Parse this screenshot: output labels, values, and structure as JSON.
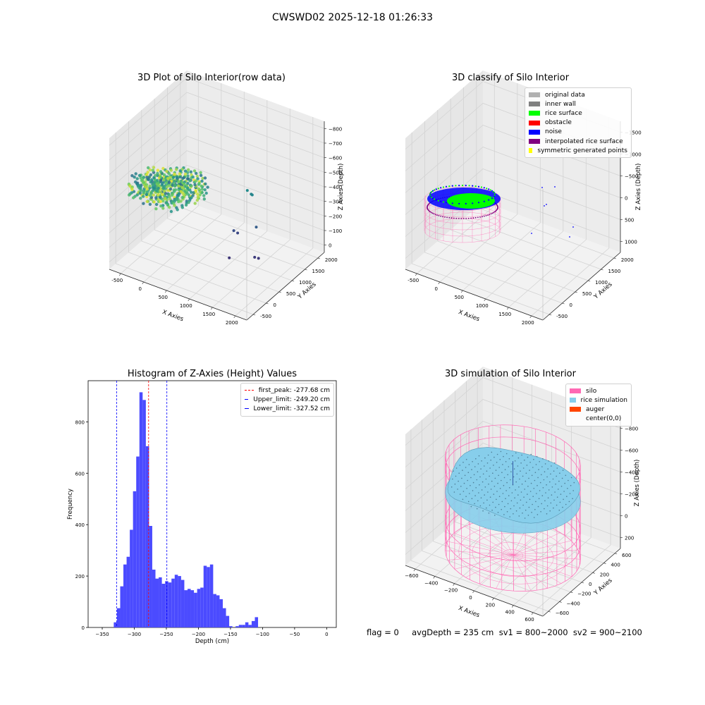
{
  "figure": {
    "suptitle": "CWSWD02 2025-12-18 01:26:33",
    "footer": "flag = 0     avgDepth = 235 cm  sv1 = 800~2000  sv2 = 900~2100"
  },
  "colors": {
    "histogram_bar": "#4b4bff",
    "silo": "#ff69b4",
    "rice_simulation": "#87ceeb",
    "auger": "#ff4500",
    "rice_surface": "#00ff00",
    "noise": "#0000ff",
    "interpolated": "#800080",
    "symmetric": "#ffff00",
    "original": "#b0b0b0",
    "inner_wall": "#808080",
    "first_peak_line": "#ff0000",
    "limit_line": "#0000ff"
  },
  "chart_data": [
    {
      "id": "raw",
      "type": "scatter",
      "title": "3D Plot of Silo Interior(row data)",
      "xlabel": "X Axies",
      "ylabel": "Y Axies",
      "zlabel": "Z Axies (Depth)",
      "x_ticks": [
        "-500",
        "0",
        "500",
        "1000",
        "1500",
        "2000"
      ],
      "y_ticks": [
        "-500",
        "0",
        "500",
        "1000",
        "1500",
        "2000"
      ],
      "z_ticks": [
        "0",
        "−100",
        "−200",
        "−300",
        "−400",
        "−500",
        "−600",
        "−700",
        "−800"
      ],
      "xlim": [
        -700,
        2100
      ],
      "ylim": [
        -600,
        2100
      ],
      "zlim": [
        -900,
        50
      ],
      "colormap": "viridis",
      "outliers": [
        {
          "x": 1000,
          "y": 1300,
          "z": -450
        },
        {
          "x": 1050,
          "y": 1350,
          "z": -480
        },
        {
          "x": 1100,
          "y": 1300,
          "z": -470
        },
        {
          "x": 900,
          "y": 1000,
          "z": -700
        },
        {
          "x": 950,
          "y": 1050,
          "z": -720
        },
        {
          "x": 1300,
          "y": 1100,
          "z": -640
        },
        {
          "x": 1100,
          "y": 500,
          "z": -780
        },
        {
          "x": 1500,
          "y": 700,
          "z": -760
        },
        {
          "x": 1550,
          "y": 750,
          "z": -770
        }
      ]
    },
    {
      "id": "classify",
      "type": "scatter",
      "title": "3D classify of Silo Interior",
      "xlabel": "X Axies",
      "ylabel": "Y Axies",
      "zlabel": "Z Axies (Depth)",
      "x_ticks": [
        "-500",
        "0",
        "500",
        "1000",
        "1500",
        "2000"
      ],
      "y_ticks": [
        "-500",
        "0",
        "500",
        "1000",
        "1500",
        "2000"
      ],
      "z_ticks": [
        "1000",
        "500",
        "0",
        "−500",
        "−1000",
        "−1500"
      ],
      "xlim": [
        -700,
        2100
      ],
      "ylim": [
        -600,
        2100
      ],
      "zlim": [
        -1700,
        1100
      ],
      "legend": [
        {
          "label": "original data",
          "color": "#b0b0b0"
        },
        {
          "label": "inner wall",
          "color": "#808080"
        },
        {
          "label": "rice surface",
          "color": "#00ff00"
        },
        {
          "label": "obstacle",
          "color": "#ff0000"
        },
        {
          "label": "noise",
          "color": "#0000ff"
        },
        {
          "label": "interpolated rice surface",
          "color": "#800080"
        },
        {
          "label": "symmetric generated points",
          "color": "#ffff00"
        }
      ]
    },
    {
      "id": "hist",
      "type": "bar",
      "title": "Histogram of Z-Axies (Height) Values",
      "xlabel": "Depth (cm)",
      "ylabel": "Frequency",
      "xlim": [
        -372,
        15
      ],
      "ylim": [
        0,
        960
      ],
      "x_ticks": [
        -350,
        -300,
        -250,
        -200,
        -150,
        -100,
        -50,
        0
      ],
      "y_ticks": [
        0,
        200,
        400,
        600,
        800
      ],
      "bin_start": -332,
      "bin_width": 5,
      "frequencies": [
        20,
        75,
        160,
        245,
        275,
        380,
        530,
        665,
        915,
        885,
        705,
        395,
        225,
        190,
        195,
        170,
        180,
        175,
        190,
        205,
        200,
        185,
        145,
        150,
        145,
        135,
        150,
        155,
        240,
        235,
        245,
        130,
        125,
        110,
        75,
        45,
        5,
        0,
        5,
        10,
        10,
        20,
        10,
        25,
        40
      ],
      "vlines": [
        {
          "label": "first_peak: -277.68 cm",
          "x": -277.68,
          "color": "#ff0000"
        },
        {
          "label": "Upper_limit: -249.20 cm",
          "x": -249.2,
          "color": "#0000ff"
        },
        {
          "label": "Lower_limit: -327.52 cm",
          "x": -327.52,
          "color": "#0000ff"
        }
      ]
    },
    {
      "id": "sim",
      "type": "scatter",
      "title": "3D simulation of Silo Interior",
      "xlabel": "X Axies",
      "ylabel": "Y Axies",
      "zlabel": "Z Axies (Depth)",
      "x_ticks": [
        "−600",
        "−400",
        "−200",
        "0",
        "200",
        "400",
        "600"
      ],
      "y_ticks": [
        "−600",
        "−400",
        "−200",
        "0",
        "200",
        "400",
        "600"
      ],
      "z_ticks": [
        "200",
        "0",
        "−200",
        "−400",
        "−600",
        "−800"
      ],
      "xlim": [
        -700,
        700
      ],
      "ylim": [
        -700,
        700
      ],
      "zlim": [
        -950,
        350
      ],
      "silo_radius": 600,
      "silo_top": 0,
      "silo_bottom": -930,
      "rice_level": -235,
      "legend": [
        {
          "label": "silo",
          "color": "#ff69b4"
        },
        {
          "label": "rice simulation",
          "color": "#87ceeb"
        },
        {
          "label": "auger",
          "color": "#ff4500"
        },
        {
          "label": "center(0,0)",
          "color": ""
        }
      ]
    }
  ]
}
